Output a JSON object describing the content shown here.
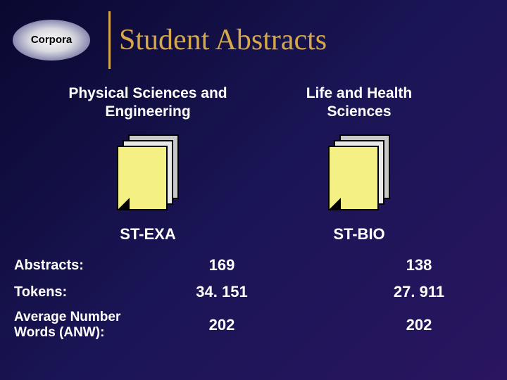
{
  "header": {
    "badge": "Corpora",
    "title": "Student Abstracts"
  },
  "columns": [
    {
      "header": "Physical Sciences and Engineering",
      "corpus": "ST-EXA"
    },
    {
      "header": "Life and Health Sciences",
      "corpus": "ST-BIO"
    }
  ],
  "rows": [
    {
      "label": "Abstracts:",
      "values": [
        "169",
        "138"
      ]
    },
    {
      "label": "Tokens:",
      "values": [
        "34. 151",
        "27. 911"
      ]
    },
    {
      "label": "Average Number Words (ANW):",
      "values": [
        "202",
        "202"
      ]
    }
  ],
  "style": {
    "background_gradient": [
      "#0a0830",
      "#1a1555",
      "#2a1560"
    ],
    "accent_color": "#d6a84a",
    "doc_front_color": "#f5f083",
    "text_color": "#ffffff",
    "badge_text_color": "#000000",
    "title_font": "Brush Script MT",
    "body_font": "Verdana",
    "title_fontsize": 42,
    "header_fontsize": 21,
    "label_fontsize": 20,
    "value_fontsize": 22
  }
}
